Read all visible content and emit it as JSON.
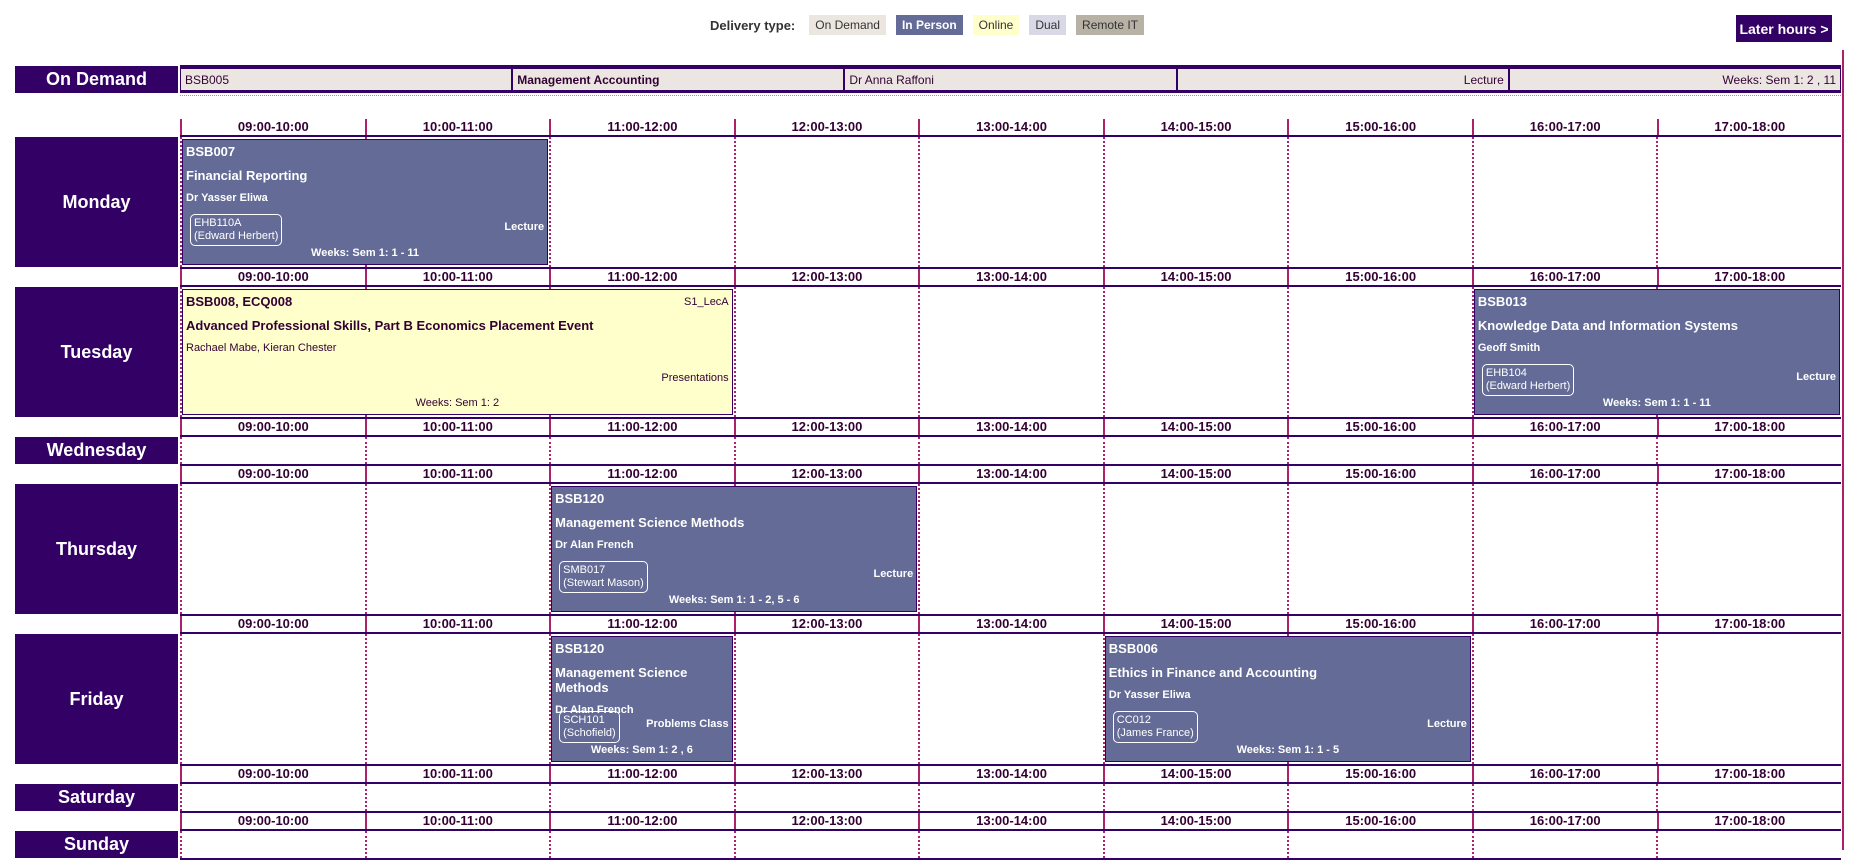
{
  "legend": {
    "label": "Delivery type:",
    "items": [
      {
        "label": "On Demand",
        "color": "#ece6e0",
        "text": "#333333"
      },
      {
        "label": "In Person",
        "color": "#636b96",
        "text": "#ffffff"
      },
      {
        "label": "Online",
        "color": "#ffffcc",
        "text": "#333333"
      },
      {
        "label": "Dual",
        "color": "#d8d8e6",
        "text": "#333333"
      },
      {
        "label": "Remote IT",
        "color": "#b8b2a6",
        "text": "#333333"
      }
    ]
  },
  "later_hours": "Later hours >",
  "on_demand": {
    "label": "On Demand",
    "cells": [
      {
        "text": "BSB005",
        "align": "left",
        "bold": false
      },
      {
        "text": "Management Accounting",
        "align": "left",
        "bold": true
      },
      {
        "text": "Dr Anna Raffoni",
        "align": "left",
        "bold": false
      },
      {
        "text": "Lecture",
        "align": "right",
        "bold": false
      },
      {
        "text": "Weeks: Sem 1: 2 , 11",
        "align": "right",
        "bold": false
      }
    ]
  },
  "time_slots": [
    "09:00-10:00",
    "10:00-11:00",
    "11:00-12:00",
    "12:00-13:00",
    "13:00-14:00",
    "14:00-15:00",
    "15:00-16:00",
    "16:00-17:00",
    "17:00-18:00"
  ],
  "days": [
    {
      "name": "Monday",
      "tall": true,
      "events": [
        {
          "start": 0,
          "span": 2,
          "delivery": "In Person",
          "code": "BSB007",
          "title": "Financial Reporting",
          "lecturer": "Dr Yasser Eliwa",
          "room": "EHB110A",
          "room_owner": "(Edward Herbert)",
          "type": "Lecture",
          "weeks": "Weeks: Sem 1: 1 - 11"
        }
      ]
    },
    {
      "name": "Tuesday",
      "tall": true,
      "events": [
        {
          "start": 0,
          "span": 3,
          "delivery": "Online",
          "code": "BSB008, ECQ008",
          "group": "S1_LecA",
          "title": "Advanced Professional Skills, Part B Economics Placement Event",
          "lecturer": "Rachael Mabe, Kieran Chester",
          "type": "Presentations",
          "weeks": "Weeks: Sem 1: 2"
        },
        {
          "start": 7,
          "span": 2,
          "delivery": "In Person",
          "code": "BSB013",
          "title": "Knowledge Data and Information Systems",
          "lecturer": "Geoff Smith",
          "room": "EHB104",
          "room_owner": "(Edward Herbert)",
          "type": "Lecture",
          "weeks": "Weeks: Sem 1: 1 - 11"
        }
      ]
    },
    {
      "name": "Wednesday",
      "tall": false,
      "events": []
    },
    {
      "name": "Thursday",
      "tall": true,
      "events": [
        {
          "start": 2,
          "span": 2,
          "delivery": "In Person",
          "code": "BSB120",
          "title": "Management Science Methods",
          "lecturer": "Dr Alan French",
          "room": "SMB017",
          "room_owner": "(Stewart Mason)",
          "type": "Lecture",
          "weeks": "Weeks: Sem 1: 1 - 2, 5 - 6"
        }
      ]
    },
    {
      "name": "Friday",
      "tall": true,
      "events": [
        {
          "start": 2,
          "span": 1,
          "delivery": "In Person",
          "code": "BSB120",
          "title": "Management Science Methods",
          "lecturer": "Dr Alan French",
          "room": "SCH101",
          "room_owner": "(Schofield)",
          "type": "Problems Class",
          "weeks": "Weeks: Sem 1: 2 , 6"
        },
        {
          "start": 5,
          "span": 2,
          "delivery": "In Person",
          "code": "BSB006",
          "title": "Ethics in Finance and Accounting",
          "lecturer": "Dr Yasser Eliwa",
          "room": "CC012",
          "room_owner": "(James France)",
          "type": "Lecture",
          "weeks": "Weeks: Sem 1: 1 - 5"
        }
      ]
    },
    {
      "name": "Saturday",
      "tall": false,
      "events": []
    },
    {
      "name": "Sunday",
      "tall": false,
      "events": []
    }
  ]
}
